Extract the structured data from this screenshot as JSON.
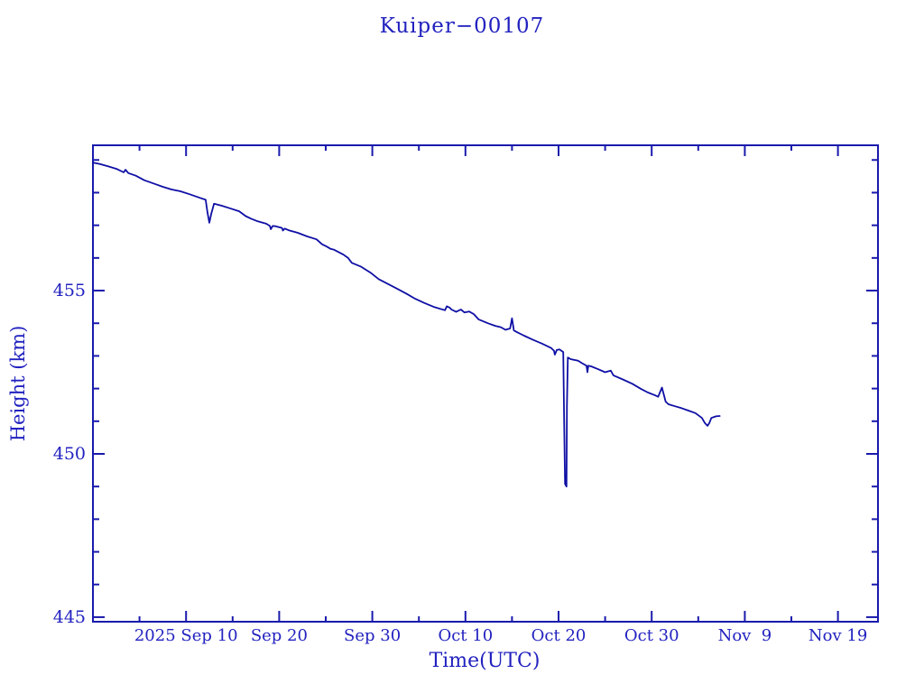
{
  "colors": {
    "background": "#ffffff",
    "line": "#0f0fa5",
    "frame": "#1a1aad",
    "text": "#2222c0"
  },
  "chart_data": {
    "type": "line",
    "title": "Kuiper−00107",
    "xlabel": "Time(UTC)",
    "ylabel": "Height (km)",
    "x_unit": "days since 2025-08-31 00:00 UTC",
    "xlim": [
      0,
      84.3
    ],
    "ylim": [
      444.86,
      459.45
    ],
    "grid": false,
    "legend": "none",
    "x_major_ticks": [
      {
        "t": 10,
        "label": "2025 Sep 10"
      },
      {
        "t": 20,
        "label": "Sep 20"
      },
      {
        "t": 30,
        "label": "Sep 30"
      },
      {
        "t": 40,
        "label": "Oct 10"
      },
      {
        "t": 50,
        "label": "Oct 20"
      },
      {
        "t": 60,
        "label": "Oct 30"
      },
      {
        "t": 70,
        "label": "Nov  9"
      },
      {
        "t": 80,
        "label": "Nov 19"
      }
    ],
    "x_minor_ticks": [
      5,
      15,
      25,
      35,
      45,
      55,
      65,
      75
    ],
    "y_major_ticks": [
      {
        "v": 445,
        "label": "445"
      },
      {
        "v": 450,
        "label": "450"
      },
      {
        "v": 455,
        "label": "455"
      }
    ],
    "y_minor_ticks": [
      446,
      447,
      448,
      449,
      451,
      452,
      453,
      454,
      456,
      457,
      458,
      459
    ],
    "series": [
      {
        "name": "height",
        "color": "#0f0fa5",
        "points": [
          [
            0.0,
            458.92
          ],
          [
            0.7,
            458.88
          ],
          [
            1.7,
            458.8
          ],
          [
            2.6,
            458.72
          ],
          [
            3.3,
            458.62
          ],
          [
            3.5,
            458.7
          ],
          [
            3.8,
            458.6
          ],
          [
            4.6,
            458.52
          ],
          [
            5.5,
            458.38
          ],
          [
            6.5,
            458.28
          ],
          [
            7.5,
            458.18
          ],
          [
            8.4,
            458.1
          ],
          [
            9.4,
            458.04
          ],
          [
            10.4,
            457.95
          ],
          [
            11.5,
            457.84
          ],
          [
            12.1,
            457.78
          ],
          [
            12.3,
            457.4
          ],
          [
            12.5,
            457.08
          ],
          [
            12.7,
            457.35
          ],
          [
            13.0,
            457.66
          ],
          [
            13.8,
            457.6
          ],
          [
            14.7,
            457.52
          ],
          [
            15.7,
            457.43
          ],
          [
            16.4,
            457.28
          ],
          [
            17.0,
            457.2
          ],
          [
            17.7,
            457.12
          ],
          [
            18.6,
            457.05
          ],
          [
            19.0,
            456.98
          ],
          [
            19.1,
            456.88
          ],
          [
            19.3,
            456.98
          ],
          [
            19.6,
            456.97
          ],
          [
            20.3,
            456.92
          ],
          [
            20.4,
            456.84
          ],
          [
            20.6,
            456.9
          ],
          [
            21.0,
            456.85
          ],
          [
            22.0,
            456.77
          ],
          [
            23.0,
            456.66
          ],
          [
            24.0,
            456.57
          ],
          [
            24.6,
            456.42
          ],
          [
            25.1,
            456.35
          ],
          [
            25.5,
            456.28
          ],
          [
            25.9,
            456.25
          ],
          [
            26.9,
            456.1
          ],
          [
            27.4,
            456.0
          ],
          [
            27.8,
            455.85
          ],
          [
            28.8,
            455.73
          ],
          [
            29.8,
            455.55
          ],
          [
            30.7,
            455.35
          ],
          [
            31.7,
            455.2
          ],
          [
            32.7,
            455.05
          ],
          [
            33.7,
            454.9
          ],
          [
            34.6,
            454.75
          ],
          [
            35.6,
            454.62
          ],
          [
            36.6,
            454.5
          ],
          [
            37.8,
            454.4
          ],
          [
            38.0,
            454.52
          ],
          [
            38.3,
            454.48
          ],
          [
            38.5,
            454.42
          ],
          [
            39.0,
            454.35
          ],
          [
            39.5,
            454.42
          ],
          [
            39.9,
            454.33
          ],
          [
            40.4,
            454.36
          ],
          [
            40.9,
            454.28
          ],
          [
            41.4,
            454.12
          ],
          [
            42.4,
            454.0
          ],
          [
            43.2,
            453.92
          ],
          [
            43.8,
            453.88
          ],
          [
            44.3,
            453.8
          ],
          [
            44.8,
            453.84
          ],
          [
            45.0,
            454.15
          ],
          [
            45.2,
            453.78
          ],
          [
            45.6,
            453.72
          ],
          [
            46.3,
            453.62
          ],
          [
            47.2,
            453.5
          ],
          [
            48.2,
            453.38
          ],
          [
            49.2,
            453.24
          ],
          [
            49.5,
            453.16
          ],
          [
            49.6,
            453.04
          ],
          [
            49.8,
            453.18
          ],
          [
            50.1,
            453.2
          ],
          [
            50.5,
            453.12
          ],
          [
            50.6,
            451.0
          ],
          [
            50.7,
            449.08
          ],
          [
            50.85,
            449.0
          ],
          [
            50.9,
            451.5
          ],
          [
            51.0,
            452.95
          ],
          [
            51.3,
            452.9
          ],
          [
            52.1,
            452.85
          ],
          [
            52.5,
            452.78
          ],
          [
            53.0,
            452.7
          ],
          [
            53.1,
            452.5
          ],
          [
            53.2,
            452.7
          ],
          [
            53.5,
            452.68
          ],
          [
            54.2,
            452.6
          ],
          [
            55.0,
            452.5
          ],
          [
            55.6,
            452.55
          ],
          [
            55.9,
            452.4
          ],
          [
            56.9,
            452.28
          ],
          [
            57.9,
            452.15
          ],
          [
            58.9,
            451.98
          ],
          [
            59.6,
            451.88
          ],
          [
            60.3,
            451.8
          ],
          [
            60.7,
            451.75
          ],
          [
            61.1,
            452.03
          ],
          [
            61.5,
            451.6
          ],
          [
            61.8,
            451.52
          ],
          [
            62.5,
            451.46
          ],
          [
            63.2,
            451.4
          ],
          [
            63.9,
            451.33
          ],
          [
            64.7,
            451.25
          ],
          [
            65.4,
            451.1
          ],
          [
            65.7,
            450.95
          ],
          [
            66.0,
            450.86
          ],
          [
            66.2,
            450.95
          ],
          [
            66.4,
            451.1
          ],
          [
            66.9,
            451.15
          ],
          [
            67.3,
            451.16
          ]
        ]
      }
    ]
  }
}
